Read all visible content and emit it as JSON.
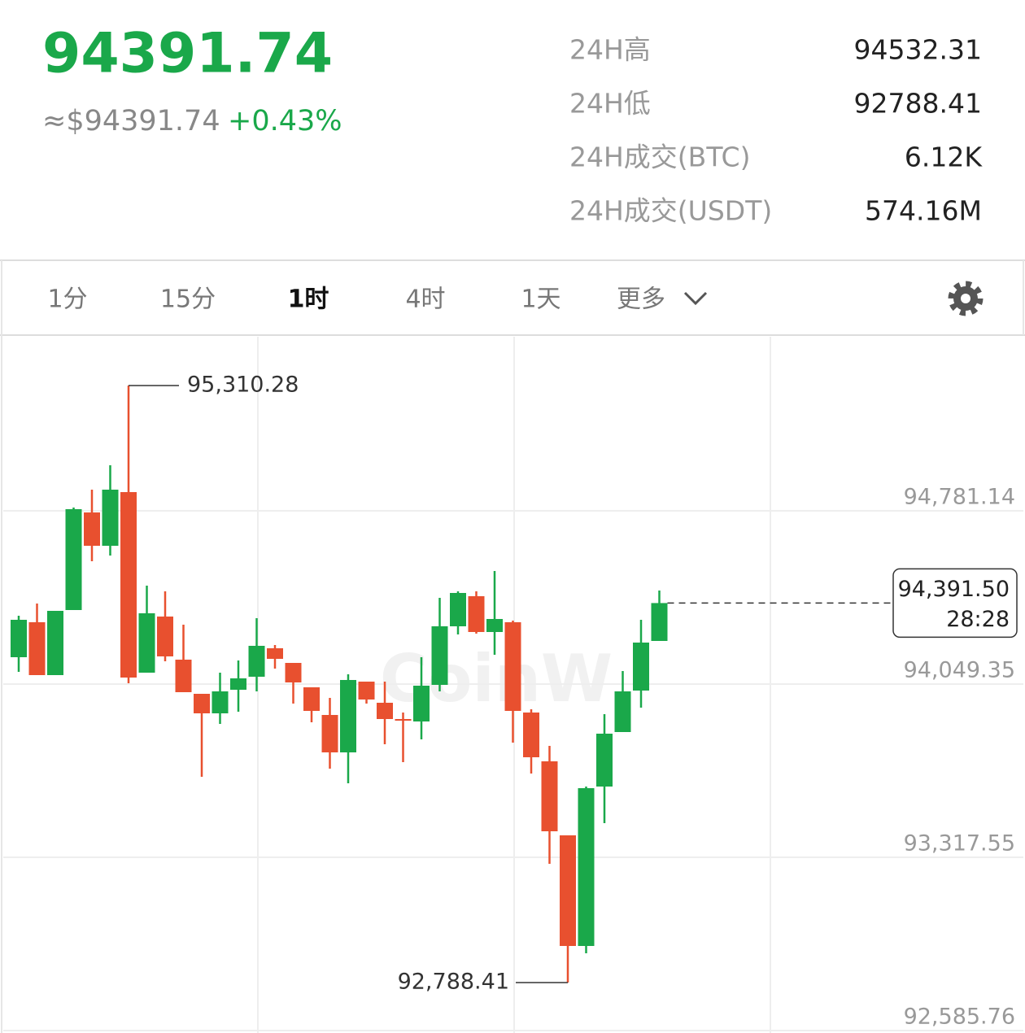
{
  "header": {
    "price": "94391.74",
    "usd_price": "≈$94391.74",
    "change": "+0.43%",
    "stats": [
      {
        "label": "24H高",
        "value": "94532.31"
      },
      {
        "label": "24H低",
        "value": "92788.41"
      },
      {
        "label": "24H成交(BTC)",
        "value": "6.12K"
      },
      {
        "label": "24H成交(USDT)",
        "value": "574.16M"
      }
    ]
  },
  "tabs": {
    "items": [
      "1分",
      "15分",
      "1时",
      "4时",
      "1天",
      "更多"
    ],
    "active": 2
  },
  "chart_data": {
    "type": "candlestick",
    "watermark": "CoinW",
    "up_color": "#1aa84a",
    "down_color": "#e8502f",
    "open": [
      94162.73,
      94310.46,
      94087.15,
      94362.0,
      94774.27,
      94633.41,
      94860.16,
      94097.46,
      94334.51,
      94152.43,
      94008.13,
      93925.68,
      94025.31,
      94080.28,
      94200.52,
      94138.68,
      94035.61,
      93918.8,
      93760.77,
      94059.66,
      93970.34,
      93901.63,
      93891.32,
      94045.92,
      94293.28,
      94420.4,
      94269.24,
      94310.46,
      93929.11,
      93722.98,
      93410.34,
      92943.09,
      93616.47,
      93846.66,
      94021.87,
      94231.44
    ],
    "high": [
      94337.95,
      94389.48,
      94358.56,
      94794.88,
      94870.47,
      94973.53,
      95310.28,
      94465.06,
      94441.02,
      94300.16,
      94008.13,
      94097.46,
      94148.99,
      94327.64,
      94214.27,
      94138.68,
      94035.61,
      93990.95,
      94090.58,
      94059.66,
      94059.66,
      93929.11,
      94162.73,
      94413.53,
      94441.02,
      94441.02,
      94526.91,
      94317.33,
      93942.85,
      93788.25,
      93410.34,
      93616.47,
      93922.24,
      94104.33,
      94320.77,
      94444.45
    ],
    "low": [
      94100.89,
      94087.15,
      94087.15,
      94362.0,
      94568.13,
      94592.18,
      94052.79,
      94097.46,
      94145.55,
      94015.0,
      93657.7,
      93881.01,
      93932.55,
      94018.44,
      94114.63,
      93966.9,
      93887.88,
      93692.05,
      93630.21,
      93966.9,
      93795.12,
      93719.54,
      93815.74,
      94018.44,
      94258.93,
      94262.36,
      94173.04,
      93801.99,
      93671.44,
      93290.09,
      92788.41,
      92912.17,
      93461.87,
      93846.66,
      93949.72,
      94231.44
    ],
    "close": [
      94320.77,
      94087.15,
      94358.56,
      94788.01,
      94633.41,
      94870.47,
      94076.84,
      94348.25,
      94166.17,
      94015.0,
      93925.68,
      94018.44,
      94073.41,
      94210.83,
      94155.86,
      94056.23,
      93935.98,
      93760.77,
      94066.54,
      93984.08,
      93901.63,
      93894.76,
      94042.49,
      94293.28,
      94434.15,
      94269.24,
      94324.21,
      93935.98,
      93740.15,
      93427.51,
      92943.09,
      93609.6,
      93839.79,
      94018.44,
      94224.57,
      94391.5
    ],
    "ylim": [
      92575.45,
      95512.93
    ],
    "yticks": [
      {
        "value": 92585.76,
        "label": "92,585.76"
      },
      {
        "value": 93317.55,
        "label": "93,317.55"
      },
      {
        "value": 94049.35,
        "label": "94,049.35"
      },
      {
        "value": 94781.14,
        "label": "94,781.14"
      }
    ],
    "annotations": [
      {
        "text": "95,310.28",
        "value": 95310.28
      },
      {
        "text": "92,788.41",
        "value": 92788.41
      }
    ],
    "last_price": {
      "value": 94391.5,
      "label": "94,391.50"
    },
    "countdown": "28:28"
  }
}
